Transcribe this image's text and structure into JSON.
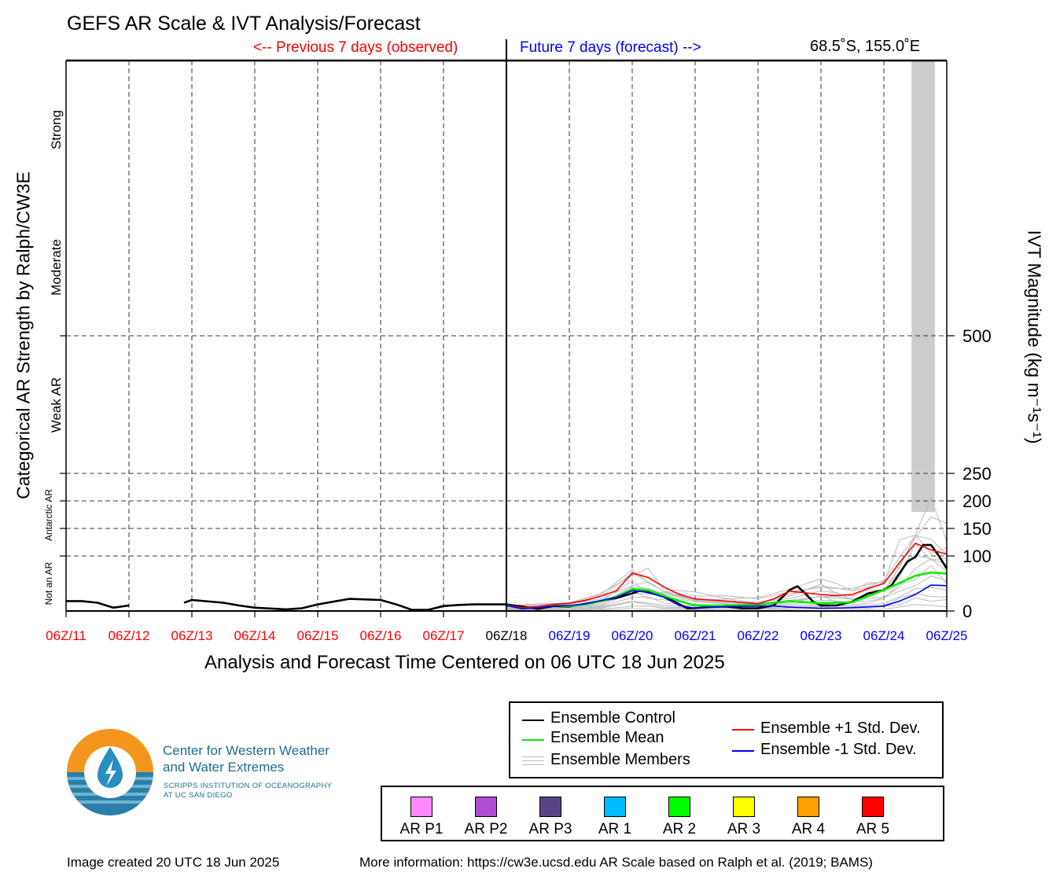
{
  "header": {
    "title": "GEFS AR Scale & IVT Analysis/Forecast",
    "previous_label": "<-- Previous 7 days (observed)",
    "future_label": "Future 7 days (forecast) -->",
    "location": "68.5˚S, 155.0˚E"
  },
  "colors": {
    "observed": "#ff0000",
    "forecast": "#0000ff",
    "control": "#000000",
    "mean": "#00ee00",
    "plus_std": "#ff0000",
    "minus_std": "#0000ff",
    "members": "#bbbbbb",
    "shade": "#cccccc"
  },
  "chart_data": {
    "type": "line",
    "title": "GEFS AR Scale & IVT Analysis/Forecast",
    "xlabel": "Analysis and Forecast Time Centered on 06 UTC 18 Jun 2025",
    "ylabel_left": "Categorical AR Strength by Ralph/CW3E",
    "ylabel_right": "IVT Magnitude (kg m⁻¹s⁻¹)",
    "ylim": [
      0,
      1000
    ],
    "x_range_days": [
      0,
      14
    ],
    "x_ticks": [
      "06Z/11",
      "06Z/12",
      "06Z/13",
      "06Z/14",
      "06Z/15",
      "06Z/16",
      "06Z/17",
      "06Z/18",
      "06Z/19",
      "06Z/20",
      "06Z/21",
      "06Z/22",
      "06Z/23",
      "06Z/24",
      "06Z/25"
    ],
    "x_tick_colors": [
      "observed",
      "observed",
      "observed",
      "observed",
      "observed",
      "observed",
      "observed",
      "control",
      "forecast",
      "forecast",
      "forecast",
      "forecast",
      "forecast",
      "forecast",
      "forecast"
    ],
    "analysis_time_day": 7,
    "y_ticks": [
      0,
      100,
      150,
      200,
      250,
      500
    ],
    "y_tick_labels": [
      "0",
      "100",
      "150",
      "200",
      "250",
      "500"
    ],
    "horizontal_grid": [
      100,
      150,
      200,
      250,
      500
    ],
    "categories": [
      {
        "label": "Not an AR",
        "ymin": 0,
        "ymax": 100,
        "size": "small"
      },
      {
        "label": "Antarctic AR",
        "ymin": 100,
        "ymax": 250,
        "size": "small"
      },
      {
        "label": "Weak AR",
        "ymin": 250,
        "ymax": 500,
        "size": "normal"
      },
      {
        "label": "Moderate",
        "ymin": 500,
        "ymax": 750,
        "size": "normal"
      },
      {
        "label": "Strong",
        "ymin": 750,
        "ymax": 1000,
        "size": "normal"
      }
    ],
    "shaded_region": {
      "x0": 13.44,
      "x1": 13.81,
      "y0": 180,
      "y1": 1000
    },
    "series": [
      {
        "name": "Ensemble Control",
        "color_key": "control",
        "segments": [
          [
            [
              0,
              18
            ],
            [
              0.25,
              18
            ],
            [
              0.5,
              15
            ],
            [
              0.75,
              6
            ],
            [
              1,
              10
            ]
          ],
          [
            [
              1.875,
              15
            ],
            [
              2,
              20
            ],
            [
              2.5,
              15
            ],
            [
              2.75,
              10
            ],
            [
              3,
              6
            ],
            [
              3.5,
              3
            ],
            [
              3.75,
              5
            ],
            [
              4,
              12
            ],
            [
              4.5,
              22
            ],
            [
              5,
              20
            ],
            [
              5.25,
              12
            ],
            [
              5.5,
              2
            ],
            [
              5.75,
              2
            ],
            [
              6,
              9
            ],
            [
              6.25,
              11
            ],
            [
              6.5,
              12
            ],
            [
              7,
              12
            ],
            [
              7.25,
              8
            ],
            [
              7.5,
              4
            ],
            [
              7.75,
              9
            ],
            [
              8,
              8
            ],
            [
              8.25,
              13
            ],
            [
              8.5,
              18
            ],
            [
              8.75,
              24
            ],
            [
              9,
              32
            ],
            [
              9.125,
              37
            ],
            [
              9.25,
              34
            ],
            [
              9.5,
              28
            ],
            [
              9.75,
              12
            ],
            [
              9.875,
              5
            ],
            [
              10,
              5
            ],
            [
              10.25,
              8
            ],
            [
              10.5,
              8
            ],
            [
              10.75,
              5
            ],
            [
              11,
              5
            ],
            [
              11.25,
              10
            ],
            [
              11.5,
              38
            ],
            [
              11.625,
              45
            ],
            [
              11.75,
              32
            ],
            [
              11.875,
              17
            ],
            [
              12,
              10
            ],
            [
              12.25,
              10
            ],
            [
              12.5,
              17
            ],
            [
              12.75,
              32
            ],
            [
              13,
              38
            ],
            [
              13.125,
              47
            ],
            [
              13.375,
              90
            ],
            [
              13.5,
              98
            ],
            [
              13.625,
              120
            ],
            [
              13.75,
              120
            ],
            [
              13.875,
              100
            ],
            [
              14,
              77
            ]
          ]
        ]
      },
      {
        "name": "Ensemble Mean",
        "color_key": "mean",
        "segments": [
          [
            [
              7,
              10
            ],
            [
              7.25,
              5
            ],
            [
              7.5,
              7
            ],
            [
              7.75,
              10
            ],
            [
              8,
              9
            ],
            [
              8.25,
              12
            ],
            [
              8.5,
              18
            ],
            [
              8.75,
              26
            ],
            [
              9,
              40
            ],
            [
              9.25,
              38
            ],
            [
              9.5,
              28
            ],
            [
              9.75,
              18
            ],
            [
              10,
              10
            ],
            [
              10.5,
              10
            ],
            [
              11,
              12
            ],
            [
              11.5,
              18
            ],
            [
              12,
              14
            ],
            [
              12.5,
              16
            ],
            [
              13,
              38
            ],
            [
              13.5,
              64
            ],
            [
              13.75,
              70
            ],
            [
              14,
              68
            ]
          ]
        ]
      },
      {
        "name": "Ensemble +1 Std. Dev.",
        "color_key": "plus_std",
        "segments": [
          [
            [
              7,
              10
            ],
            [
              7.25,
              6
            ],
            [
              7.5,
              8
            ],
            [
              7.75,
              12
            ],
            [
              8,
              14
            ],
            [
              8.25,
              19
            ],
            [
              8.5,
              27
            ],
            [
              8.75,
              37
            ],
            [
              9,
              69
            ],
            [
              9.25,
              61
            ],
            [
              9.5,
              44
            ],
            [
              9.75,
              30
            ],
            [
              10,
              22
            ],
            [
              10.5,
              18
            ],
            [
              11,
              13
            ],
            [
              11.25,
              22
            ],
            [
              11.5,
              36
            ],
            [
              11.75,
              33
            ],
            [
              12,
              30
            ],
            [
              12.25,
              28
            ],
            [
              12.5,
              30
            ],
            [
              12.75,
              41
            ],
            [
              13,
              50
            ],
            [
              13.25,
              88
            ],
            [
              13.5,
              123
            ],
            [
              13.75,
              111
            ],
            [
              14,
              103
            ]
          ]
        ]
      },
      {
        "name": "Ensemble -1 Std. Dev.",
        "color_key": "minus_std",
        "segments": [
          [
            [
              7,
              10
            ],
            [
              7.25,
              4
            ],
            [
              7.5,
              6
            ],
            [
              7.75,
              9
            ],
            [
              8,
              10
            ],
            [
              8.25,
              13
            ],
            [
              8.5,
              19
            ],
            [
              8.75,
              25
            ],
            [
              9,
              37
            ],
            [
              9.25,
              34
            ],
            [
              9.5,
              25
            ],
            [
              9.75,
              10
            ],
            [
              10,
              5
            ],
            [
              10.5,
              8
            ],
            [
              11,
              9
            ],
            [
              11.25,
              9
            ],
            [
              11.5,
              7
            ],
            [
              12,
              5
            ],
            [
              12.5,
              6
            ],
            [
              13,
              9
            ],
            [
              13.25,
              18
            ],
            [
              13.5,
              30
            ],
            [
              13.75,
              47
            ],
            [
              14,
              46
            ]
          ]
        ]
      }
    ],
    "members_band": [
      [
        7,
        10
      ],
      [
        7.5,
        12
      ],
      [
        8,
        16
      ],
      [
        8.5,
        28
      ],
      [
        9,
        78
      ],
      [
        9.25,
        66
      ],
      [
        9.5,
        48
      ],
      [
        10,
        30
      ],
      [
        10.5,
        26
      ],
      [
        11,
        22
      ],
      [
        11.5,
        42
      ],
      [
        12,
        58
      ],
      [
        12.25,
        48
      ],
      [
        12.5,
        40
      ],
      [
        12.75,
        46
      ],
      [
        13,
        60
      ],
      [
        13.25,
        110
      ],
      [
        13.5,
        168
      ],
      [
        13.75,
        175
      ],
      [
        14,
        150
      ]
    ],
    "legend": {
      "control": "Ensemble Control",
      "mean": "Ensemble Mean",
      "members": "Ensemble Members",
      "plus_std": "Ensemble +1 Std. Dev.",
      "minus_std": "Ensemble -1 Std. Dev."
    }
  },
  "ar_scale": [
    {
      "label": "AR P1",
      "color": "#ff88ff"
    },
    {
      "label": "AR P2",
      "color": "#b04ccf"
    },
    {
      "label": "AR P3",
      "color": "#5a4488"
    },
    {
      "label": "AR 1",
      "color": "#00bbff"
    },
    {
      "label": "AR 2",
      "color": "#00ff00"
    },
    {
      "label": "AR 3",
      "color": "#ffff00"
    },
    {
      "label": "AR 4",
      "color": "#ffa000"
    },
    {
      "label": "AR 5",
      "color": "#ff0000"
    }
  ],
  "logo": {
    "org_line1": "Center for Western Weather",
    "org_line2": "and Water Extremes",
    "sub_line1": "SCRIPPS INSTITUTION OF OCEANOGRAPHY",
    "sub_line2": "AT UC SAN DIEGO"
  },
  "footer": {
    "created": "Image created 20 UTC 18 Jun 2025",
    "more_info": "More information: https://cw3e.ucsd.edu AR Scale based on Ralph et al. (2019; BAMS)"
  }
}
